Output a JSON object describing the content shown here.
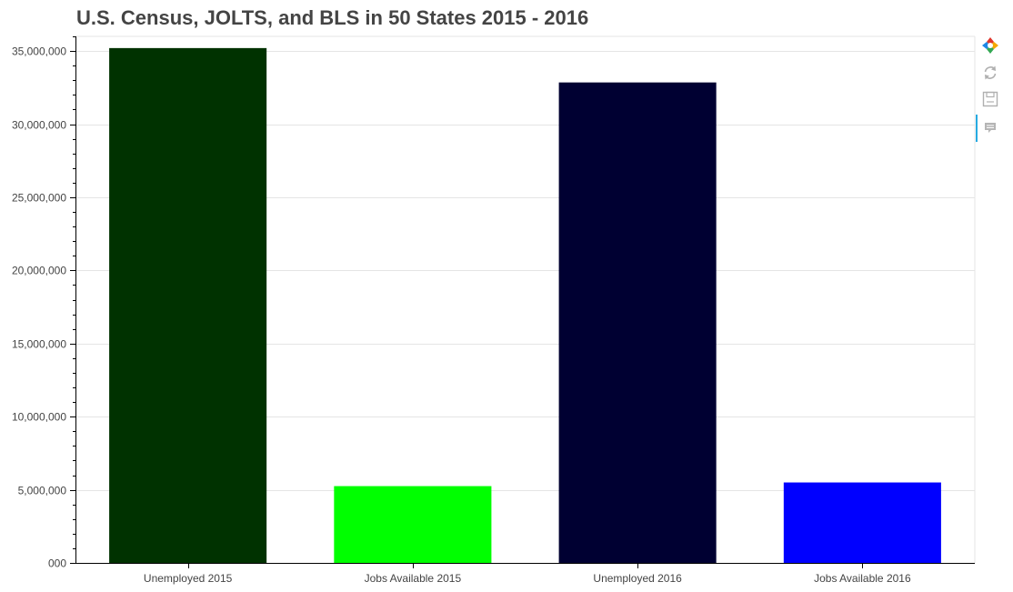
{
  "chart_data": {
    "type": "bar",
    "title": "U.S. Census, JOLTS, and BLS in 50 States 2015 - 2016",
    "xlabel": "",
    "ylabel": "",
    "categories": [
      "Unemployed 2015",
      "Jobs Available 2015",
      "Unemployed 2016",
      "Jobs Available 2016"
    ],
    "values": [
      35200000,
      5250000,
      32850000,
      5500000
    ],
    "colors": [
      "#003200",
      "#00ff00",
      "#000032",
      "#0000ff"
    ],
    "ylim": [
      0,
      36000000
    ],
    "yticks": [
      0,
      5000000,
      10000000,
      15000000,
      20000000,
      25000000,
      30000000,
      35000000
    ],
    "ytick_labels": [
      "000",
      "5,000,000",
      "10,000,000",
      "15,000,000",
      "20,000,000",
      "25,000,000",
      "30,000,000",
      "35,000,000"
    ],
    "grid": true,
    "legend": "none"
  },
  "toolbar": {
    "tools": [
      "bokeh-logo-icon",
      "reset-icon",
      "save-icon",
      "hover-icon"
    ],
    "active_tool": "hover-icon"
  }
}
